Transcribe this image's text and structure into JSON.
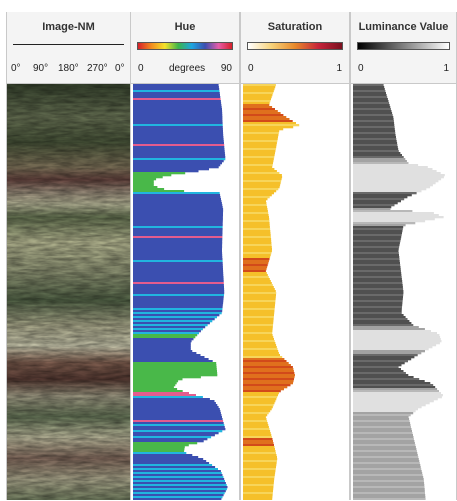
{
  "tracks": {
    "image": {
      "title": "Image-NM",
      "ticks": [
        "0°",
        "90°",
        "180°",
        "270°",
        "0°"
      ]
    },
    "hue": {
      "title": "Hue",
      "min_label": "0",
      "unit_label": "degrees",
      "max_label": "90"
    },
    "saturation": {
      "title": "Saturation",
      "min_label": "0",
      "max_label": "1"
    },
    "luminance": {
      "title": "Luminance Value",
      "min_label": "0",
      "max_label": "1"
    }
  },
  "colors": {
    "hue_fill": "#3b4fb0",
    "hue_green": "#49b849",
    "hue_cyan": "#21b5df",
    "hue_pink": "#e45c8e",
    "sat_fill": "#f5c02a",
    "sat_dark": "#e0701d",
    "lum_dark": "#505050",
    "lum_mid": "#a3a3a3",
    "lum_light": "#e0e0e0"
  },
  "chart_data": [
    {
      "type": "area",
      "name": "Hue",
      "xlim": [
        0,
        90
      ],
      "depth_profile": [
        [
          0,
          74
        ],
        [
          0.06,
          77
        ],
        [
          0.12,
          78
        ],
        [
          0.18,
          80
        ],
        [
          0.2,
          74
        ],
        [
          0.21,
          55
        ],
        [
          0.22,
          30
        ],
        [
          0.23,
          18
        ],
        [
          0.245,
          18
        ],
        [
          0.255,
          30
        ],
        [
          0.262,
          75
        ],
        [
          0.3,
          78
        ],
        [
          0.4,
          77
        ],
        [
          0.5,
          79
        ],
        [
          0.55,
          77
        ],
        [
          0.59,
          60
        ],
        [
          0.62,
          50
        ],
        [
          0.64,
          50
        ],
        [
          0.67,
          72
        ],
        [
          0.7,
          73
        ],
        [
          0.71,
          40
        ],
        [
          0.73,
          35
        ],
        [
          0.74,
          45
        ],
        [
          0.76,
          70
        ],
        [
          0.78,
          75
        ],
        [
          0.83,
          80
        ],
        [
          0.86,
          60
        ],
        [
          0.87,
          45
        ],
        [
          0.885,
          44
        ],
        [
          0.9,
          60
        ],
        [
          0.93,
          76
        ],
        [
          0.97,
          82
        ],
        [
          1,
          76
        ]
      ],
      "color_bands": [
        [
          0.21,
          0.26,
          "hue_green"
        ],
        [
          0.21,
          0.215,
          "hue_pink"
        ],
        [
          0.255,
          0.26,
          "hue_cyan"
        ],
        [
          0.54,
          0.6,
          "hue_cyan"
        ],
        [
          0.59,
          0.61,
          "hue_green"
        ],
        [
          0.61,
          0.615,
          "hue_cyan"
        ],
        [
          0.67,
          0.74,
          "hue_green"
        ],
        [
          0.74,
          0.75,
          "hue_pink"
        ],
        [
          0.815,
          0.825,
          "hue_cyan"
        ],
        [
          0.84,
          0.855,
          "hue_cyan"
        ],
        [
          0.86,
          0.885,
          "hue_green"
        ],
        [
          0.885,
          0.895,
          "hue_cyan"
        ],
        [
          0.91,
          1,
          "hue_cyan"
        ]
      ]
    },
    {
      "type": "area",
      "name": "Saturation",
      "xlim": [
        0,
        1
      ],
      "depth_profile": [
        [
          0,
          0.32
        ],
        [
          0.05,
          0.25
        ],
        [
          0.08,
          0.42
        ],
        [
          0.1,
          0.55
        ],
        [
          0.11,
          0.35
        ],
        [
          0.15,
          0.32
        ],
        [
          0.2,
          0.28
        ],
        [
          0.22,
          0.38
        ],
        [
          0.25,
          0.35
        ],
        [
          0.28,
          0.22
        ],
        [
          0.32,
          0.25
        ],
        [
          0.4,
          0.28
        ],
        [
          0.45,
          0.22
        ],
        [
          0.5,
          0.32
        ],
        [
          0.55,
          0.3
        ],
        [
          0.6,
          0.28
        ],
        [
          0.65,
          0.35
        ],
        [
          0.68,
          0.48
        ],
        [
          0.7,
          0.5
        ],
        [
          0.72,
          0.48
        ],
        [
          0.74,
          0.35
        ],
        [
          0.78,
          0.28
        ],
        [
          0.8,
          0.22
        ],
        [
          0.85,
          0.28
        ],
        [
          0.9,
          0.33
        ],
        [
          0.95,
          0.3
        ],
        [
          1,
          0.28
        ]
      ],
      "dark_bands": [
        [
          0.66,
          0.74
        ],
        [
          0.05,
          0.09
        ],
        [
          0.42,
          0.45
        ],
        [
          0.85,
          0.87
        ]
      ]
    },
    {
      "type": "area",
      "name": "Luminance Value",
      "xlim": [
        0,
        1
      ],
      "depth_profile": [
        [
          0,
          0.3
        ],
        [
          0.04,
          0.35
        ],
        [
          0.08,
          0.4
        ],
        [
          0.12,
          0.42
        ],
        [
          0.16,
          0.45
        ],
        [
          0.19,
          0.55
        ],
        [
          0.2,
          0.75
        ],
        [
          0.22,
          0.92
        ],
        [
          0.25,
          0.75
        ],
        [
          0.27,
          0.55
        ],
        [
          0.3,
          0.35
        ],
        [
          0.31,
          0.8
        ],
        [
          0.32,
          0.9
        ],
        [
          0.34,
          0.5
        ],
        [
          0.4,
          0.45
        ],
        [
          0.5,
          0.5
        ],
        [
          0.55,
          0.48
        ],
        [
          0.58,
          0.6
        ],
        [
          0.6,
          0.85
        ],
        [
          0.62,
          0.88
        ],
        [
          0.65,
          0.65
        ],
        [
          0.68,
          0.45
        ],
        [
          0.7,
          0.55
        ],
        [
          0.72,
          0.78
        ],
        [
          0.75,
          0.9
        ],
        [
          0.78,
          0.65
        ],
        [
          0.8,
          0.55
        ],
        [
          0.85,
          0.6
        ],
        [
          0.9,
          0.65
        ],
        [
          0.95,
          0.7
        ],
        [
          1,
          0.72
        ]
      ],
      "dark_bands": [
        [
          0,
          0.18
        ],
        [
          0.26,
          0.3
        ],
        [
          0.34,
          0.58
        ],
        [
          0.65,
          0.73
        ]
      ],
      "light_bands": [
        [
          0.19,
          0.26
        ],
        [
          0.31,
          0.33
        ],
        [
          0.59,
          0.64
        ],
        [
          0.74,
          0.79
        ]
      ]
    }
  ]
}
